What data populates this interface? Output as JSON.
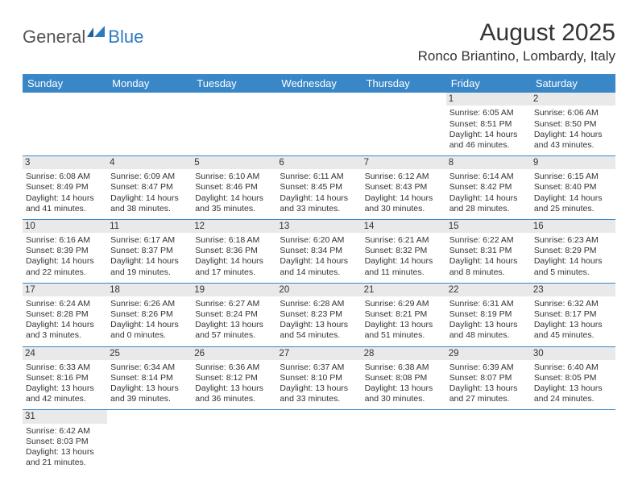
{
  "logo": {
    "part1": "General",
    "part2": "Blue"
  },
  "title": "August 2025",
  "location": "Ronco Briantino, Lombardy, Italy",
  "colors": {
    "header_bg": "#3a87c8",
    "header_fg": "#ffffff",
    "border": "#3a87c8",
    "daynum_bg": "#e9e9e9",
    "logo_gray": "#555555",
    "logo_blue": "#2b7bbf"
  },
  "daysOfWeek": [
    "Sunday",
    "Monday",
    "Tuesday",
    "Wednesday",
    "Thursday",
    "Friday",
    "Saturday"
  ],
  "weeks": [
    [
      null,
      null,
      null,
      null,
      null,
      {
        "n": "1",
        "sr": "Sunrise: 6:05 AM",
        "ss": "Sunset: 8:51 PM",
        "dl": "Daylight: 14 hours and 46 minutes."
      },
      {
        "n": "2",
        "sr": "Sunrise: 6:06 AM",
        "ss": "Sunset: 8:50 PM",
        "dl": "Daylight: 14 hours and 43 minutes."
      }
    ],
    [
      {
        "n": "3",
        "sr": "Sunrise: 6:08 AM",
        "ss": "Sunset: 8:49 PM",
        "dl": "Daylight: 14 hours and 41 minutes."
      },
      {
        "n": "4",
        "sr": "Sunrise: 6:09 AM",
        "ss": "Sunset: 8:47 PM",
        "dl": "Daylight: 14 hours and 38 minutes."
      },
      {
        "n": "5",
        "sr": "Sunrise: 6:10 AM",
        "ss": "Sunset: 8:46 PM",
        "dl": "Daylight: 14 hours and 35 minutes."
      },
      {
        "n": "6",
        "sr": "Sunrise: 6:11 AM",
        "ss": "Sunset: 8:45 PM",
        "dl": "Daylight: 14 hours and 33 minutes."
      },
      {
        "n": "7",
        "sr": "Sunrise: 6:12 AM",
        "ss": "Sunset: 8:43 PM",
        "dl": "Daylight: 14 hours and 30 minutes."
      },
      {
        "n": "8",
        "sr": "Sunrise: 6:14 AM",
        "ss": "Sunset: 8:42 PM",
        "dl": "Daylight: 14 hours and 28 minutes."
      },
      {
        "n": "9",
        "sr": "Sunrise: 6:15 AM",
        "ss": "Sunset: 8:40 PM",
        "dl": "Daylight: 14 hours and 25 minutes."
      }
    ],
    [
      {
        "n": "10",
        "sr": "Sunrise: 6:16 AM",
        "ss": "Sunset: 8:39 PM",
        "dl": "Daylight: 14 hours and 22 minutes."
      },
      {
        "n": "11",
        "sr": "Sunrise: 6:17 AM",
        "ss": "Sunset: 8:37 PM",
        "dl": "Daylight: 14 hours and 19 minutes."
      },
      {
        "n": "12",
        "sr": "Sunrise: 6:18 AM",
        "ss": "Sunset: 8:36 PM",
        "dl": "Daylight: 14 hours and 17 minutes."
      },
      {
        "n": "13",
        "sr": "Sunrise: 6:20 AM",
        "ss": "Sunset: 8:34 PM",
        "dl": "Daylight: 14 hours and 14 minutes."
      },
      {
        "n": "14",
        "sr": "Sunrise: 6:21 AM",
        "ss": "Sunset: 8:32 PM",
        "dl": "Daylight: 14 hours and 11 minutes."
      },
      {
        "n": "15",
        "sr": "Sunrise: 6:22 AM",
        "ss": "Sunset: 8:31 PM",
        "dl": "Daylight: 14 hours and 8 minutes."
      },
      {
        "n": "16",
        "sr": "Sunrise: 6:23 AM",
        "ss": "Sunset: 8:29 PM",
        "dl": "Daylight: 14 hours and 5 minutes."
      }
    ],
    [
      {
        "n": "17",
        "sr": "Sunrise: 6:24 AM",
        "ss": "Sunset: 8:28 PM",
        "dl": "Daylight: 14 hours and 3 minutes."
      },
      {
        "n": "18",
        "sr": "Sunrise: 6:26 AM",
        "ss": "Sunset: 8:26 PM",
        "dl": "Daylight: 14 hours and 0 minutes."
      },
      {
        "n": "19",
        "sr": "Sunrise: 6:27 AM",
        "ss": "Sunset: 8:24 PM",
        "dl": "Daylight: 13 hours and 57 minutes."
      },
      {
        "n": "20",
        "sr": "Sunrise: 6:28 AM",
        "ss": "Sunset: 8:23 PM",
        "dl": "Daylight: 13 hours and 54 minutes."
      },
      {
        "n": "21",
        "sr": "Sunrise: 6:29 AM",
        "ss": "Sunset: 8:21 PM",
        "dl": "Daylight: 13 hours and 51 minutes."
      },
      {
        "n": "22",
        "sr": "Sunrise: 6:31 AM",
        "ss": "Sunset: 8:19 PM",
        "dl": "Daylight: 13 hours and 48 minutes."
      },
      {
        "n": "23",
        "sr": "Sunrise: 6:32 AM",
        "ss": "Sunset: 8:17 PM",
        "dl": "Daylight: 13 hours and 45 minutes."
      }
    ],
    [
      {
        "n": "24",
        "sr": "Sunrise: 6:33 AM",
        "ss": "Sunset: 8:16 PM",
        "dl": "Daylight: 13 hours and 42 minutes."
      },
      {
        "n": "25",
        "sr": "Sunrise: 6:34 AM",
        "ss": "Sunset: 8:14 PM",
        "dl": "Daylight: 13 hours and 39 minutes."
      },
      {
        "n": "26",
        "sr": "Sunrise: 6:36 AM",
        "ss": "Sunset: 8:12 PM",
        "dl": "Daylight: 13 hours and 36 minutes."
      },
      {
        "n": "27",
        "sr": "Sunrise: 6:37 AM",
        "ss": "Sunset: 8:10 PM",
        "dl": "Daylight: 13 hours and 33 minutes."
      },
      {
        "n": "28",
        "sr": "Sunrise: 6:38 AM",
        "ss": "Sunset: 8:08 PM",
        "dl": "Daylight: 13 hours and 30 minutes."
      },
      {
        "n": "29",
        "sr": "Sunrise: 6:39 AM",
        "ss": "Sunset: 8:07 PM",
        "dl": "Daylight: 13 hours and 27 minutes."
      },
      {
        "n": "30",
        "sr": "Sunrise: 6:40 AM",
        "ss": "Sunset: 8:05 PM",
        "dl": "Daylight: 13 hours and 24 minutes."
      }
    ],
    [
      {
        "n": "31",
        "sr": "Sunrise: 6:42 AM",
        "ss": "Sunset: 8:03 PM",
        "dl": "Daylight: 13 hours and 21 minutes."
      },
      null,
      null,
      null,
      null,
      null,
      null
    ]
  ]
}
